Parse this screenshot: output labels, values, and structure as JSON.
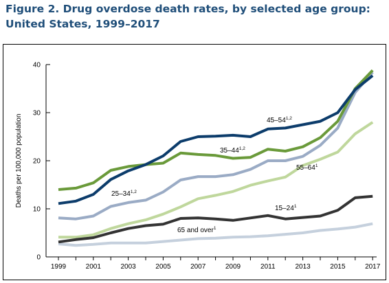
{
  "figure": {
    "title_line1": "Figure 2. Drug overdose death rates, by selected age group:",
    "title_line2": "United States, 1999–2017"
  },
  "chart_data": {
    "type": "line",
    "title": "Figure 2. Drug overdose death rates, by selected age group: United States, 1999–2017",
    "xlabel": "",
    "ylabel": "Deaths per 100,000 population",
    "x": [
      1999,
      2000,
      2001,
      2002,
      2003,
      2004,
      2005,
      2006,
      2007,
      2008,
      2009,
      2010,
      2011,
      2012,
      2013,
      2014,
      2015,
      2016,
      2017
    ],
    "xticks": [
      "1999",
      "2001",
      "2003",
      "2005",
      "2007",
      "2009",
      "2011",
      "2013",
      "2015",
      "2017"
    ],
    "yticks": [
      "0",
      "10",
      "20",
      "30",
      "40"
    ],
    "ylim": [
      0,
      40
    ],
    "grid": false,
    "legend": "none (labels placed next to lines)",
    "series": [
      {
        "name": "45–54",
        "label_sup": "1,2",
        "color": "#0c3c6b",
        "values": [
          11.1,
          11.6,
          13.0,
          16.1,
          17.9,
          19.2,
          21.0,
          24.0,
          25.0,
          25.1,
          25.3,
          25.0,
          26.6,
          26.8,
          27.5,
          28.2,
          30.0,
          34.8,
          37.7
        ]
      },
      {
        "name": "35–44",
        "label_sup": "1,2",
        "color": "#6a9a3a",
        "values": [
          14.0,
          14.3,
          15.4,
          18.0,
          18.8,
          19.2,
          19.5,
          21.6,
          21.3,
          21.1,
          20.5,
          20.7,
          22.4,
          22.0,
          22.9,
          24.8,
          28.2,
          35.0,
          38.8
        ]
      },
      {
        "name": "25–34",
        "label_sup": "1,2",
        "color": "#9aabc5",
        "values": [
          8.1,
          7.9,
          8.5,
          10.5,
          11.3,
          11.8,
          13.5,
          16.0,
          16.7,
          16.7,
          17.1,
          18.2,
          20.0,
          20.0,
          20.9,
          23.2,
          26.8,
          34.2,
          38.4
        ]
      },
      {
        "name": "55–64",
        "label_sup": "1",
        "color": "#bfd79c",
        "values": [
          4.1,
          4.1,
          4.6,
          5.9,
          6.9,
          7.7,
          8.9,
          10.4,
          12.1,
          12.8,
          13.6,
          14.9,
          15.8,
          16.6,
          19.0,
          20.3,
          21.8,
          25.6,
          28.0
        ]
      },
      {
        "name": "15–24",
        "label_sup": "1",
        "color": "#333333",
        "values": [
          3.1,
          3.6,
          4.0,
          5.0,
          5.9,
          6.5,
          6.8,
          8.0,
          8.1,
          7.9,
          7.6,
          8.1,
          8.6,
          7.9,
          8.2,
          8.5,
          9.7,
          12.3,
          12.6
        ]
      },
      {
        "name": "65 and over",
        "label_sup": "1",
        "color": "#c5d0dd",
        "values": [
          2.7,
          2.4,
          2.6,
          2.9,
          2.9,
          2.9,
          3.2,
          3.5,
          3.8,
          3.9,
          4.1,
          4.2,
          4.4,
          4.7,
          5.0,
          5.5,
          5.8,
          6.2,
          6.9
        ]
      }
    ]
  }
}
